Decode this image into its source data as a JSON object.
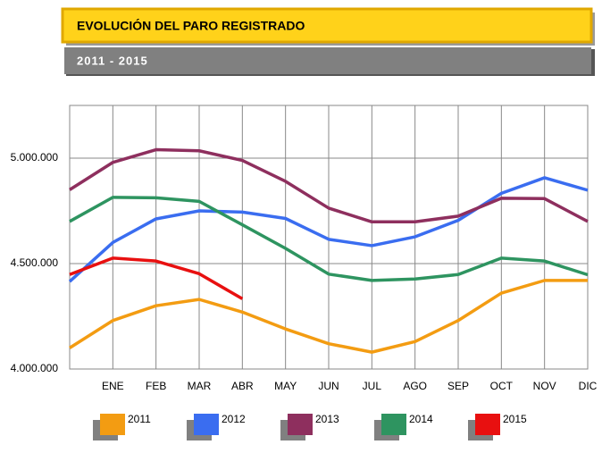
{
  "chart_data": {
    "type": "line",
    "title": "EVOLUCIÓN DEL PARO REGISTRADO",
    "subtitle": "2011 - 2015",
    "categories": [
      null,
      "ENE",
      "FEB",
      "MAR",
      "ABR",
      "MAY",
      "JUN",
      "JUL",
      "AGO",
      "SEP",
      "OCT",
      "NOV",
      "DIC"
    ],
    "ylim": [
      4000000,
      5250000
    ],
    "yticks": [
      {
        "value": 4000000,
        "label": "4.000.000"
      },
      {
        "value": 4500000,
        "label": "4.500.000"
      },
      {
        "value": 5000000,
        "label": "5.000.000"
      }
    ],
    "grid": true,
    "series": [
      {
        "name": "2011",
        "color": "#f39c12",
        "values": [
          4100000,
          4230000,
          4300000,
          4330000,
          4270000,
          4190000,
          4120000,
          4080000,
          4130000,
          4230000,
          4360000,
          4420000,
          4420000
        ]
      },
      {
        "name": "2012",
        "color": "#3a6df0",
        "values": [
          4415000,
          4600000,
          4712000,
          4750000,
          4744000,
          4714000,
          4615000,
          4585000,
          4627000,
          4705000,
          4833000,
          4907000,
          4848000
        ]
      },
      {
        "name": "2013",
        "color": "#8e2f5e",
        "values": [
          4850000,
          4980000,
          5040000,
          5035000,
          4989000,
          4890000,
          4763000,
          4698000,
          4698000,
          4725000,
          4810000,
          4808000,
          4700000
        ]
      },
      {
        "name": "2014",
        "color": "#2e9460",
        "values": [
          4700000,
          4814000,
          4812000,
          4795000,
          4684000,
          4572000,
          4450000,
          4420000,
          4427000,
          4448000,
          4526000,
          4512000,
          4447000
        ]
      },
      {
        "name": "2015",
        "color": "#e81010",
        "values": [
          4448000,
          4526000,
          4512000,
          4452000,
          4333000,
          null,
          null,
          null,
          null,
          null,
          null,
          null,
          null
        ]
      }
    ]
  }
}
